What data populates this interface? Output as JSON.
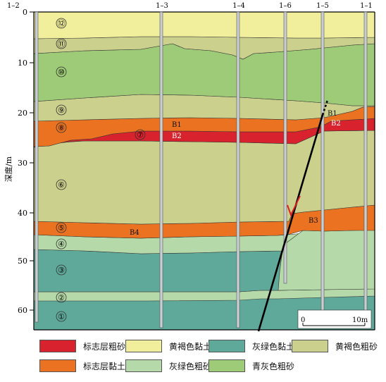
{
  "boreholes": [
    "1–2",
    "1–3",
    "1–4",
    "1–6",
    "1–5",
    "1–1"
  ],
  "depth_axis": {
    "label": "深度/m",
    "ticks": [
      "0",
      "10",
      "20",
      "30",
      "40",
      "50",
      "60"
    ]
  },
  "layer_numbers": [
    "⑫",
    "⑪",
    "⑩",
    "⑨",
    "⑧",
    "⑦",
    "⑥",
    "⑤",
    "④",
    "③",
    "②",
    "①"
  ],
  "marker_labels": [
    "B1",
    "B2",
    "B3",
    "B4",
    "B1",
    "B2"
  ],
  "scale_bar": {
    "start": "0",
    "end": "10m"
  },
  "colors": {
    "marker_sand": "#d8222e",
    "marker_clay": "#eb7220",
    "yellow_brown_clay": "#f1ef9b",
    "gray_green_sand": "#b5d9a8",
    "gray_green_clay": "#5fa99a",
    "blue_gray_sand": "#9ecb77",
    "yellow_brown_sand": "#ccd08d",
    "fault_arrow": "#e02020"
  },
  "legend": [
    {
      "label": "标志层粗砂",
      "color": "#d8222e"
    },
    {
      "label": "黄褐色黏土",
      "color": "#f1ef9b"
    },
    {
      "label": "灰绿色黏土",
      "color": "#5fa99a"
    },
    {
      "label": "黄褐色粗砂",
      "color": "#ccd08d"
    },
    {
      "label": "标志层黏土",
      "color": "#eb7220"
    },
    {
      "label": "灰绿色粗砂",
      "color": "#b5d9a8"
    },
    {
      "label": "青灰色粗砂",
      "color": "#9ecb77"
    }
  ]
}
